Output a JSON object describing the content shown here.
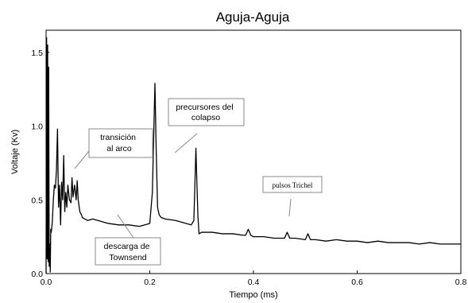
{
  "chart_data": {
    "type": "line",
    "title": "Aguja-Aguja",
    "xlabel": "Tiempo (ms)",
    "ylabel": "Voltaje (Kv)",
    "xlim": [
      0,
      0.8
    ],
    "ylim": [
      0,
      1.65
    ],
    "xticks": [
      0.0,
      0.2,
      0.4,
      0.6,
      0.8
    ],
    "xtick_labels": [
      "0.0",
      "0.2",
      "0.4",
      "0.6",
      "0.8"
    ],
    "yticks": [
      0.0,
      0.5,
      1.0,
      1.5
    ],
    "ytick_labels": [
      "0.0",
      "0.5",
      "1.0",
      "1.5"
    ],
    "grid": false,
    "series": [
      {
        "color": "#000000",
        "x": [
          0.0,
          0.001,
          0.002,
          0.003,
          0.004,
          0.005,
          0.006,
          0.007,
          0.008,
          0.009,
          0.01,
          0.012,
          0.014,
          0.016,
          0.018,
          0.02,
          0.022,
          0.024,
          0.026,
          0.028,
          0.03,
          0.032,
          0.034,
          0.036,
          0.038,
          0.04,
          0.042,
          0.045,
          0.048,
          0.05,
          0.052,
          0.055,
          0.058,
          0.06,
          0.062,
          0.065,
          0.068,
          0.07,
          0.075,
          0.08,
          0.09,
          0.1,
          0.12,
          0.14,
          0.16,
          0.18,
          0.2,
          0.205,
          0.208,
          0.21,
          0.212,
          0.215,
          0.218,
          0.222,
          0.23,
          0.25,
          0.27,
          0.28,
          0.285,
          0.287,
          0.289,
          0.291,
          0.293,
          0.295,
          0.3,
          0.32,
          0.34,
          0.36,
          0.38,
          0.385,
          0.39,
          0.395,
          0.4,
          0.42,
          0.44,
          0.46,
          0.465,
          0.47,
          0.475,
          0.48,
          0.5,
          0.505,
          0.51,
          0.52,
          0.54,
          0.56,
          0.58,
          0.6,
          0.62,
          0.64,
          0.66,
          0.68,
          0.7,
          0.72,
          0.74,
          0.76,
          0.78,
          0.8
        ],
        "y": [
          0.0,
          1.6,
          0.1,
          1.55,
          0.08,
          1.4,
          0.05,
          0.2,
          0.01,
          0.3,
          0.28,
          0.35,
          0.5,
          0.6,
          0.58,
          0.7,
          0.98,
          0.45,
          0.6,
          0.33,
          0.62,
          0.5,
          0.8,
          0.42,
          0.55,
          0.45,
          0.6,
          0.5,
          0.48,
          0.65,
          0.52,
          0.6,
          0.5,
          0.63,
          0.5,
          0.42,
          0.4,
          0.38,
          0.37,
          0.36,
          0.37,
          0.36,
          0.34,
          0.33,
          0.33,
          0.32,
          0.34,
          0.55,
          1.0,
          1.29,
          0.9,
          0.45,
          0.4,
          0.38,
          0.37,
          0.36,
          0.34,
          0.33,
          0.36,
          0.6,
          0.85,
          0.6,
          0.38,
          0.27,
          0.28,
          0.28,
          0.27,
          0.27,
          0.26,
          0.26,
          0.3,
          0.26,
          0.25,
          0.25,
          0.24,
          0.24,
          0.28,
          0.24,
          0.24,
          0.24,
          0.23,
          0.27,
          0.23,
          0.23,
          0.22,
          0.23,
          0.22,
          0.22,
          0.21,
          0.22,
          0.21,
          0.21,
          0.21,
          0.2,
          0.21,
          0.2,
          0.2,
          0.2
        ]
      }
    ],
    "annotations": [
      {
        "text_lines": [
          "transición",
          "al arco"
        ],
        "x": 0.05,
        "y": 0.7
      },
      {
        "text_lines": [
          "precursores del",
          "colapso"
        ],
        "x": 0.24,
        "y": 0.88
      },
      {
        "text_lines": [
          "pulsos Trichel"
        ],
        "x": 0.47,
        "y": 0.4
      },
      {
        "text_lines": [
          "descarga de",
          "Townsend"
        ],
        "x": 0.13,
        "y": 0.36
      }
    ]
  }
}
